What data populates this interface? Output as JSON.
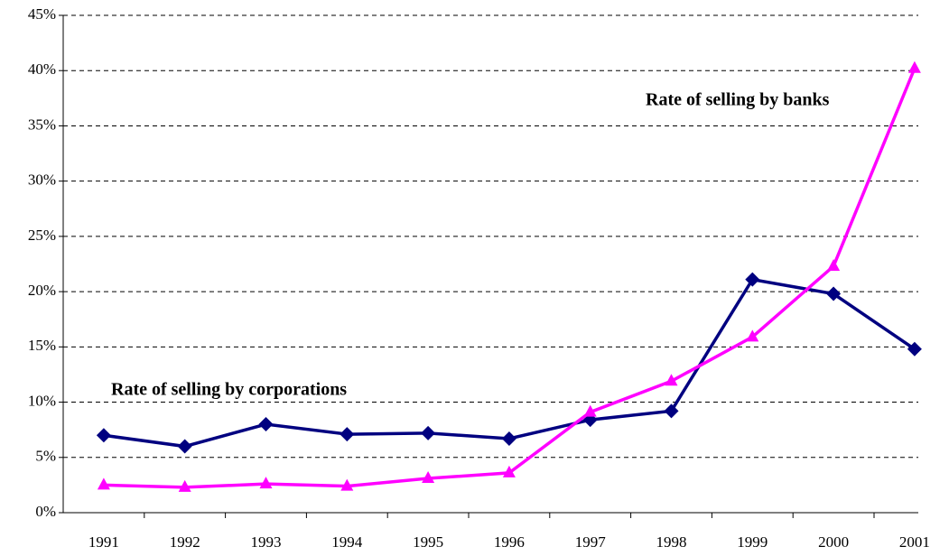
{
  "chart_data": {
    "type": "line",
    "categories": [
      "1991",
      "1992",
      "1993",
      "1994",
      "1995",
      "1996",
      "1997",
      "1998",
      "1999",
      "2000",
      "2001"
    ],
    "series": [
      {
        "name": "Rate of selling by corporations",
        "color": "#000080",
        "marker": "diamond",
        "values": [
          7.0,
          6.0,
          8.0,
          7.1,
          7.2,
          6.7,
          8.4,
          9.2,
          21.1,
          19.8,
          14.8
        ]
      },
      {
        "name": "Rate of selling by banks",
        "color": "#ff00ff",
        "marker": "triangle",
        "values": [
          2.5,
          2.3,
          2.6,
          2.4,
          3.1,
          3.6,
          9.1,
          11.9,
          15.9,
          22.3,
          40.2
        ]
      }
    ],
    "ylim": [
      0,
      45
    ],
    "yticks": [
      {
        "value": 0,
        "label": "0%"
      },
      {
        "value": 5,
        "label": "5%"
      },
      {
        "value": 10,
        "label": "10%"
      },
      {
        "value": 15,
        "label": "15%"
      },
      {
        "value": 20,
        "label": "20%"
      },
      {
        "value": 25,
        "label": "25%"
      },
      {
        "value": 30,
        "label": "30%"
      },
      {
        "value": 35,
        "label": "35%"
      },
      {
        "value": 40,
        "label": "40%"
      },
      {
        "value": 45,
        "label": "45%"
      }
    ],
    "grid": true
  }
}
